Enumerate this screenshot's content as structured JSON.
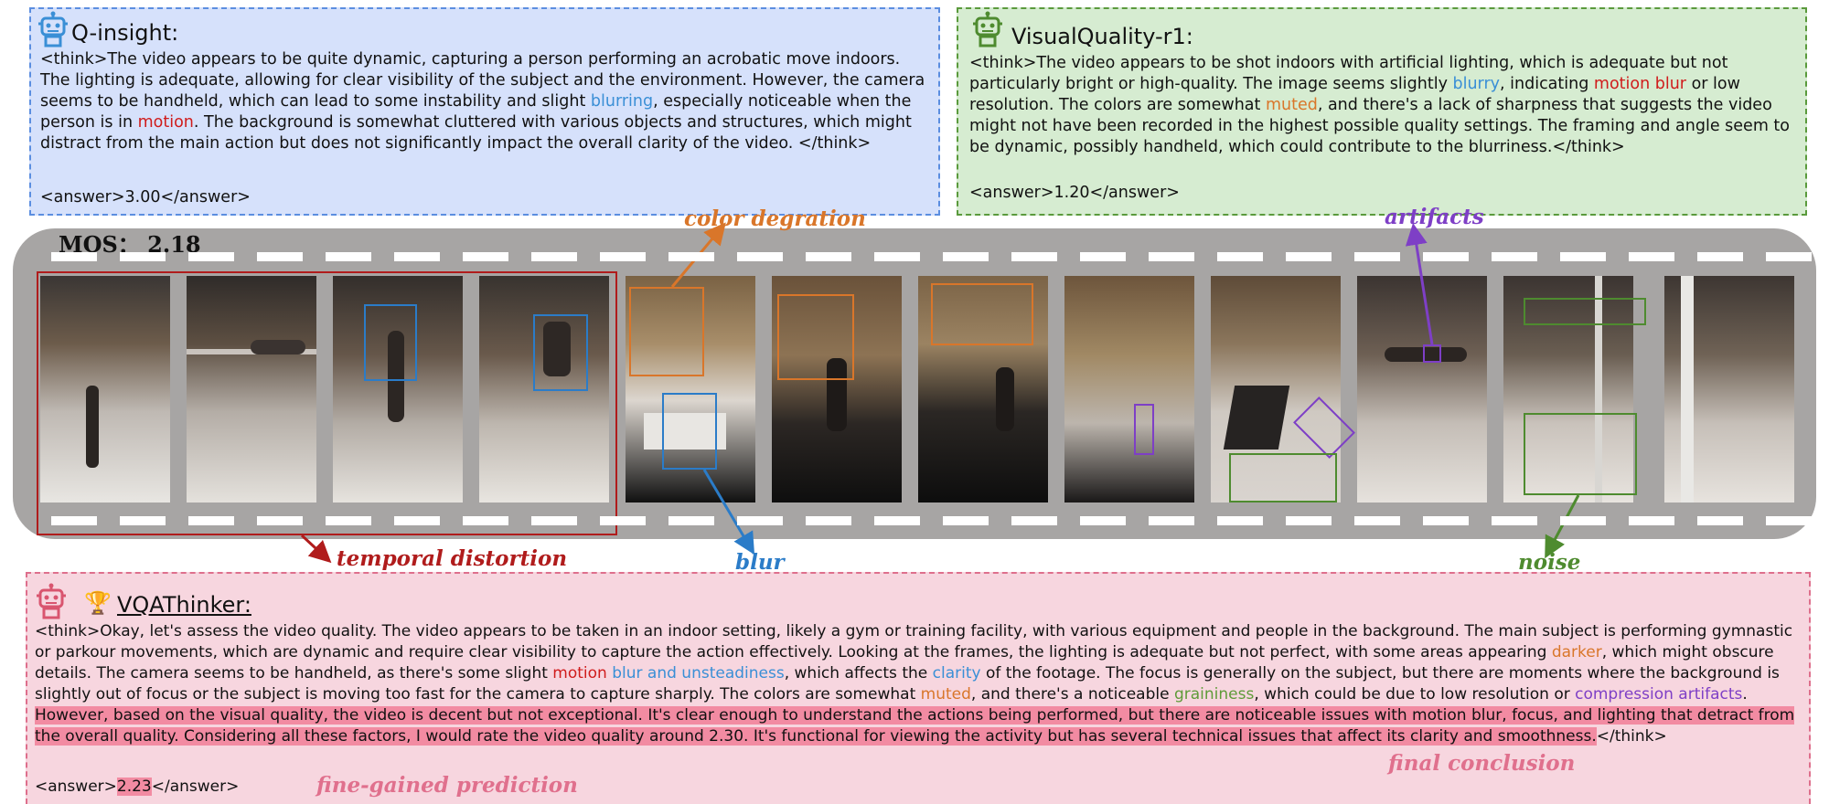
{
  "panels": {
    "qinsight": {
      "title": "Q-insight:",
      "segments": [
        {
          "t": "<think>The video appears to be quite dynamic, capturing a person performing an acrobatic move indoors. The lighting is adequate, allowing for clear visibility of the subject and the environment. However, the camera seems to be handheld, which can lead to some instability and slight ",
          "c": ""
        },
        {
          "t": "blurring",
          "c": "c-blue"
        },
        {
          "t": ", especially noticeable when the person is in ",
          "c": ""
        },
        {
          "t": "motion",
          "c": "c-red"
        },
        {
          "t": ". The background is somewhat cluttered with various objects and structures, which might distract from the main action but does not significantly impact the overall clarity of the video.  </think>",
          "c": ""
        }
      ],
      "answer": "<answer>3.00</answer>"
    },
    "visualquality": {
      "title": "VisualQuality-r1:",
      "segments": [
        {
          "t": "<think>The video appears to be shot indoors with artificial lighting, which is adequate but not particularly bright or high-quality. The image seems slightly ",
          "c": ""
        },
        {
          "t": "blurry",
          "c": "c-blue"
        },
        {
          "t": ", indicating ",
          "c": ""
        },
        {
          "t": "motion blur",
          "c": "c-red"
        },
        {
          "t": " or low resolution. The colors are somewhat ",
          "c": ""
        },
        {
          "t": "muted",
          "c": "c-orange"
        },
        {
          "t": ", and there's a lack of sharpness that suggests the video might not have been recorded in the highest possible quality settings. The framing and angle seem to be dynamic, possibly handheld, which could contribute to the blurriness.</think>",
          "c": ""
        }
      ],
      "answer": "<answer>1.20</answer>"
    },
    "vqathinker": {
      "title": "VQAThinker:",
      "segments": [
        {
          "t": "<think>Okay, let's assess the video quality. The video appears to be taken in an indoor setting, likely a gym or training facility, with various equipment and people in the background. The main subject is performing gymnastic or parkour movements, which are dynamic and require clear visibility to capture the action effectively. Looking at the frames, the lighting is adequate but not perfect, with some areas appearing ",
          "c": ""
        },
        {
          "t": "darker",
          "c": "c-orange"
        },
        {
          "t": ", which might obscure details. The camera seems to be handheld, as there's some slight ",
          "c": ""
        },
        {
          "t": "motion",
          "c": "c-red"
        },
        {
          "t": " ",
          "c": ""
        },
        {
          "t": "blur and unsteadiness",
          "c": "c-blue"
        },
        {
          "t": ", which affects the ",
          "c": ""
        },
        {
          "t": "clarity",
          "c": "c-blue"
        },
        {
          "t": " of the footage. The focus is generally on the subject, but there are moments where the background is slightly out of focus or the subject is moving too fast for the camera to capture sharply. The colors are somewhat ",
          "c": ""
        },
        {
          "t": "muted",
          "c": "c-orange"
        },
        {
          "t": ", and there's a noticeable ",
          "c": ""
        },
        {
          "t": "graininess",
          "c": "c-green"
        },
        {
          "t": ", which could be due to low resolution or ",
          "c": ""
        },
        {
          "t": "compression artifacts",
          "c": "c-purple"
        },
        {
          "t": ". ",
          "c": ""
        },
        {
          "t": "However, based on the visual quality, the video is decent but not exceptional. It's clear enough to understand the actions being performed, but there are noticeable issues with motion blur, focus, and lighting that detract from the overall quality. Considering all these factors, I would rate the video quality around 2.30. It's functional for viewing the activity but has several technical issues that affect its clarity and smoothness.",
          "c": "hl"
        },
        {
          "t": "</think>",
          "c": ""
        }
      ],
      "answer_prefix": "<answer>",
      "answer_value": "2.23",
      "answer_suffix": "</answer>"
    }
  },
  "mos": "MOS： 2.18",
  "labels": {
    "color_degration": "color degration",
    "artifacts": "artifacts",
    "temporal_distortion": "temporal distortion",
    "blur": "blur",
    "noise": "noise",
    "final_conclusion": "final conclusion",
    "fine_gained_prediction": "fine-gained prediction"
  },
  "colors": {
    "qinsight_bg": "#d6e1fb",
    "visualquality_bg": "#d6ecd1",
    "vqathinker_bg": "#f7d6df",
    "temporal": "#b01c1c",
    "color_degration": "#d9762a",
    "blur": "#2b7cc8",
    "artifacts": "#7e3fc6",
    "noise": "#4e8b2f",
    "conclusion": "#e0708d",
    "filmstrip": "#a7a5a4"
  }
}
